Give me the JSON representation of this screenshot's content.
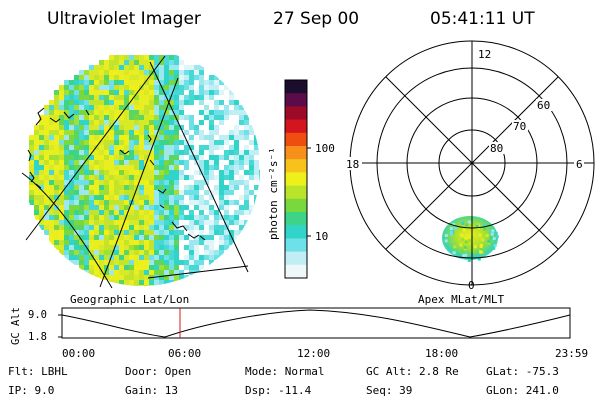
{
  "header": {
    "instrument": "Ultraviolet Imager",
    "date": "27 Sep 00",
    "time": "05:41:11 UT"
  },
  "colorbar": {
    "label": "photon cm⁻²s⁻¹",
    "scale": "log",
    "ticks": [
      "100",
      "10"
    ],
    "colors": [
      "#1a0d2e",
      "#5b0a4a",
      "#9c0a28",
      "#d4141e",
      "#f04d10",
      "#f7901a",
      "#f8c21c",
      "#eef01c",
      "#b8e42a",
      "#78d83e",
      "#3ed488",
      "#30d4c8",
      "#6ee0e8",
      "#c0eef4",
      "#eef8fa"
    ]
  },
  "panels": {
    "left_title": "Geographic Lat/Lon",
    "right_title": "Apex MLat/MLT"
  },
  "polar": {
    "hour_labels": {
      "top": "12",
      "left": "18",
      "right": "6",
      "bottom": "0"
    },
    "lat_labels": [
      "60",
      "70",
      "80"
    ]
  },
  "altitude_plot": {
    "ylabel": "GC Alt",
    "y_ticks": [
      "9.0",
      "1.8"
    ],
    "x_ticks": [
      "00:00",
      "06:00",
      "12:00",
      "18:00",
      "23:59"
    ],
    "marker_time": "05:41"
  },
  "status": {
    "row1": {
      "flt": "Flt: LBHL",
      "door": "Door: Open",
      "mode": "Mode: Normal",
      "gcalt": "GC Alt: 2.8 Re",
      "glat": "GLat: -75.3"
    },
    "row2": {
      "ip": "IP:  9.0",
      "gain": "Gain: 13",
      "dsp": "Dsp:  -11.4",
      "seq": "Seq: 39",
      "glon": "GLon: 241.0"
    }
  }
}
